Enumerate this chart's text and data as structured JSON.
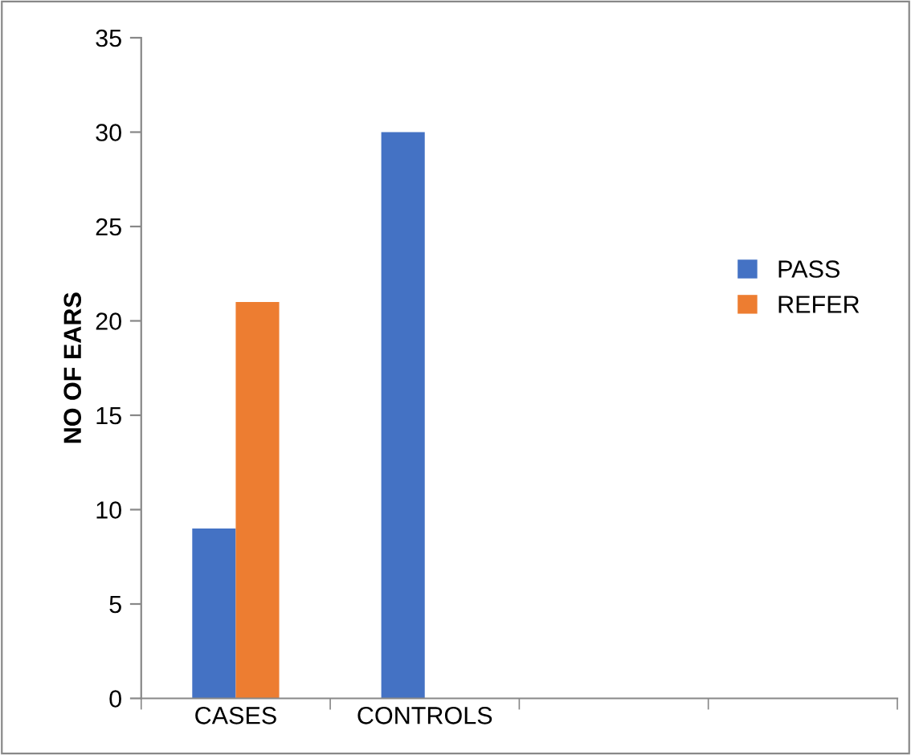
{
  "chart_data": {
    "type": "bar",
    "ylabel": "NO OF EARS",
    "categories": [
      "CASES",
      "CONTROLS",
      null,
      null
    ],
    "series": [
      {
        "name": "PASS",
        "color": "#4472c4",
        "values": [
          9,
          30,
          null,
          null
        ]
      },
      {
        "name": "REFER",
        "color": "#ed7d31",
        "values": [
          21,
          0,
          null,
          null
        ]
      }
    ],
    "ylim": [
      0,
      35
    ],
    "yticks": [
      0,
      5,
      10,
      15,
      20,
      25,
      30,
      35
    ],
    "grid": false,
    "legend": "right"
  }
}
